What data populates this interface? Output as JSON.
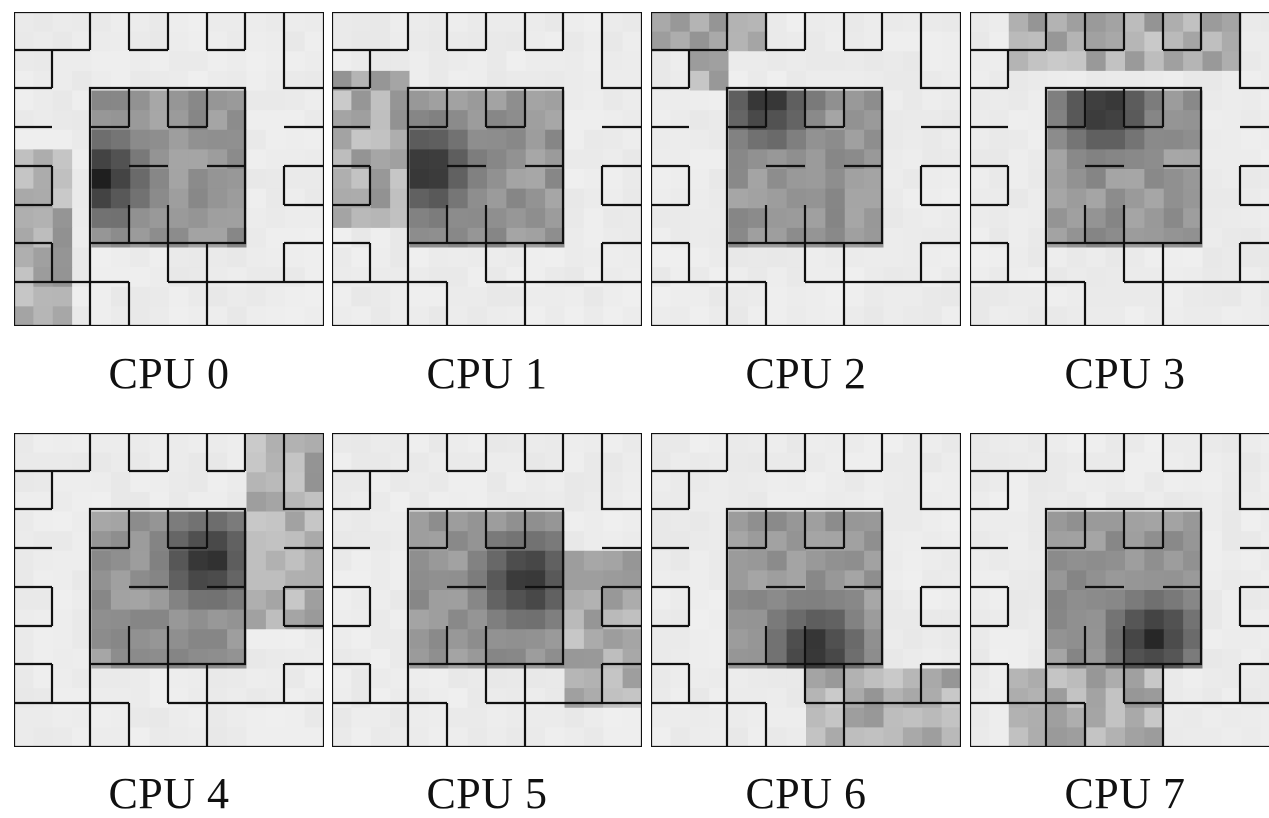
{
  "figure": {
    "panels": [
      {
        "label": "CPU 0"
      },
      {
        "label": "CPU 1"
      },
      {
        "label": "CPU 2"
      },
      {
        "label": "CPU 3"
      },
      {
        "label": "CPU 4"
      },
      {
        "label": "CPU 5"
      },
      {
        "label": "CPU 6"
      },
      {
        "label": "CPU 7"
      }
    ]
  }
}
